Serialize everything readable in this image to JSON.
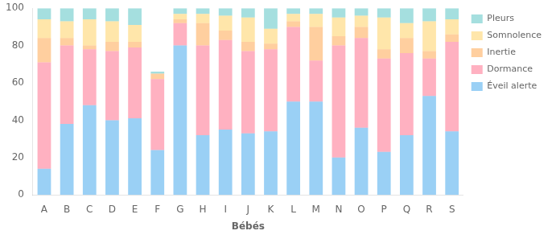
{
  "chart_data": {
    "type": "bar",
    "stacked": true,
    "grid": false,
    "legend": "right",
    "xlabel": "Bébés",
    "categories": [
      "A",
      "B",
      "C",
      "D",
      "E",
      "F",
      "G",
      "H",
      "I",
      "J",
      "K",
      "L",
      "M",
      "N",
      "O",
      "P",
      "Q",
      "R",
      "S"
    ],
    "series": [
      {
        "name": "Éveil alerte",
        "values": [
          14,
          38,
          48,
          40,
          41,
          24,
          80,
          32,
          35,
          33,
          34,
          50,
          50,
          20,
          36,
          23,
          32,
          53,
          34
        ]
      },
      {
        "name": "Dormance",
        "values": [
          57,
          42,
          30,
          37,
          38,
          38,
          12,
          48,
          48,
          44,
          44,
          40,
          22,
          60,
          48,
          50,
          44,
          20,
          48
        ]
      },
      {
        "name": "Inertie",
        "values": [
          13,
          4,
          2,
          5,
          3,
          3,
          2,
          12,
          5,
          5,
          3,
          3,
          18,
          5,
          6,
          5,
          8,
          4,
          4
        ]
      },
      {
        "name": "Somnolence",
        "values": [
          10,
          9,
          14,
          11,
          9,
          0,
          3,
          5,
          8,
          13,
          8,
          4,
          7,
          10,
          6,
          17,
          8,
          16,
          8
        ]
      },
      {
        "name": "Pleurs",
        "values": [
          6,
          7,
          6,
          7,
          9,
          1,
          3,
          3,
          4,
          5,
          11,
          3,
          3,
          5,
          4,
          5,
          8,
          7,
          6
        ]
      }
    ],
    "ylim": [
      0,
      100
    ],
    "yticks": [
      0,
      20,
      40,
      60,
      80,
      100
    ]
  }
}
